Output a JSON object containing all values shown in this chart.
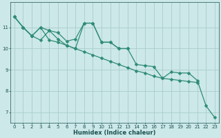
{
  "xlabel": "Humidex (Indice chaleur)",
  "x_values": [
    0,
    1,
    2,
    3,
    4,
    5,
    6,
    7,
    8,
    9,
    10,
    11,
    12,
    13,
    14,
    15,
    16,
    17,
    18,
    19,
    20,
    21,
    22,
    23
  ],
  "series1": [
    11.5,
    11.0,
    10.6,
    11.0,
    10.4,
    10.3,
    10.15,
    10.0,
    9.85,
    9.7,
    9.55,
    9.4,
    9.25,
    9.1,
    8.95,
    8.85,
    8.7,
    8.6,
    8.55,
    8.5,
    8.45,
    8.4,
    null,
    null
  ],
  "series2": [
    11.5,
    11.0,
    10.6,
    10.4,
    10.85,
    10.75,
    10.35,
    10.45,
    11.2,
    11.2,
    10.3,
    10.3,
    10.0,
    10.0,
    null,
    null,
    null,
    null,
    null,
    null,
    null,
    null,
    null,
    null
  ],
  "series3": [
    11.5,
    11.0,
    10.6,
    11.0,
    10.85,
    10.45,
    10.15,
    10.0,
    11.2,
    11.2,
    10.3,
    10.3,
    10.0,
    10.0,
    9.25,
    9.2,
    9.15,
    8.6,
    8.9,
    8.85,
    8.85,
    8.5,
    7.3,
    6.75
  ],
  "line_color": "#2e8b74",
  "bg_color": "#cce8e8",
  "grid_color": "#aacccc",
  "ylim": [
    6.5,
    12.2
  ],
  "xlim": [
    -0.5,
    23.5
  ],
  "yticks": [
    7,
    8,
    9,
    10,
    11
  ],
  "xticks": [
    0,
    1,
    2,
    3,
    4,
    5,
    6,
    7,
    8,
    9,
    10,
    11,
    12,
    13,
    14,
    15,
    16,
    17,
    18,
    19,
    20,
    21,
    22,
    23
  ],
  "markersize": 2.5,
  "linewidth": 0.9,
  "font_color": "#1a5050",
  "tick_fontsize": 5.0,
  "xlabel_fontsize": 6.0
}
